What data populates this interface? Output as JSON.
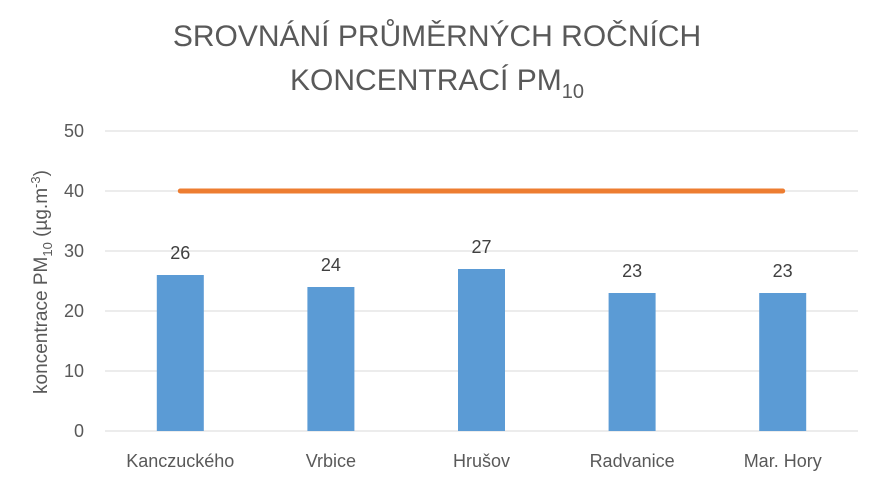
{
  "chart_data": {
    "type": "bar",
    "title_line1": "SROVNÁNÍ PRŮMĚRNÝCH ROČNÍCH",
    "title_line2_main": "KONCENTRACÍ PM",
    "title_line2_sub": "10",
    "ylabel_main": "koncentrace PM",
    "ylabel_sub": "10",
    "ylabel_unit": " (µg.m",
    "ylabel_unit_sup": "-3",
    "ylabel_close": ")",
    "xlabel": "",
    "categories": [
      "Kanczuckého",
      "Vrbice",
      "Hrušov",
      "Radvanice",
      "Mar. Hory"
    ],
    "series": [
      {
        "values": [
          26,
          24,
          27,
          23,
          23
        ],
        "type": "bar",
        "color": "#5B9BD5",
        "data_labels": [
          "26",
          "24",
          "27",
          "23",
          "23"
        ]
      },
      {
        "values": [
          40,
          40,
          40,
          40,
          40
        ],
        "type": "line",
        "color": "#ED7D31"
      }
    ],
    "ylim": [
      0,
      50
    ],
    "yticks": [
      0,
      10,
      20,
      30,
      40,
      50
    ],
    "ytick_labels": [
      "0",
      "10",
      "20",
      "30",
      "40",
      "50"
    ],
    "grid": true,
    "legend": "none",
    "gridline_color": "#D9D9D9"
  }
}
